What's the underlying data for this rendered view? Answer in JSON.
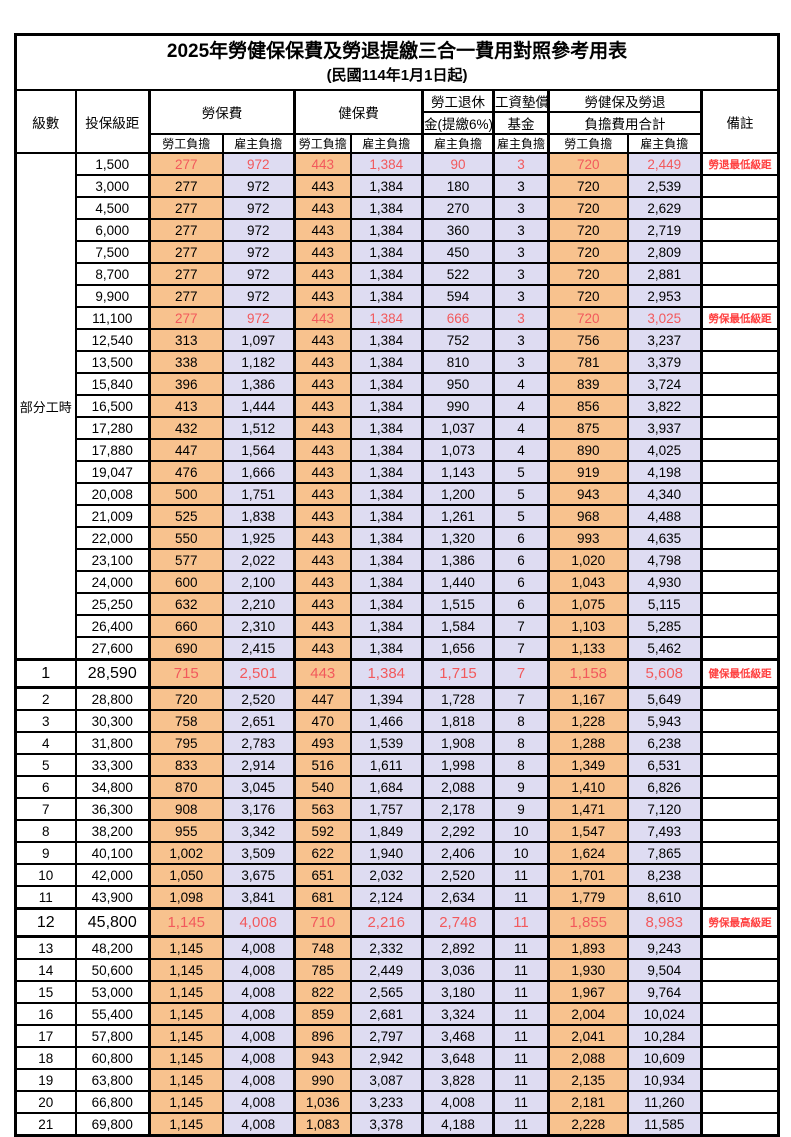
{
  "title": "2025年勞健保保費及勞退提繳三合一費用對照參考用表",
  "subtitle": "(民國114年1月1日起)",
  "colors": {
    "labor_cell_bg": "#F8C28E",
    "employer_cell_bg": "#DEDCF2",
    "red_value": "#F2595C",
    "red_remark": "#FF4040",
    "border": "#000000"
  },
  "table": {
    "header": {
      "level": "級數",
      "salary": "投保級距",
      "labor_ins": "勞保費",
      "health_ins": "健保費",
      "pension_l1": "勞工退休",
      "pension_l2": "金(提繳6%)",
      "wage_fund_l1": "工資墊償",
      "wage_fund_l2": "基金",
      "total_l1": "勞健保及勞退",
      "total_l2": "負擔費用合計",
      "remark": "備註",
      "labor_share": "勞工負擔",
      "employer_share": "雇主負擔"
    },
    "part_time_label": "部分工時",
    "columns_bg": [
      "lab",
      "emp",
      "lab",
      "emp",
      "emp",
      "emp",
      "lab",
      "emp"
    ],
    "rows": [
      {
        "salary": "1,500",
        "values": [
          "277",
          "972",
          "443",
          "1,384",
          "90",
          "3",
          "720",
          "2,449"
        ],
        "remark": "勞退最低級距",
        "red": true
      },
      {
        "salary": "3,000",
        "values": [
          "277",
          "972",
          "443",
          "1,384",
          "180",
          "3",
          "720",
          "2,539"
        ]
      },
      {
        "salary": "4,500",
        "values": [
          "277",
          "972",
          "443",
          "1,384",
          "270",
          "3",
          "720",
          "2,629"
        ]
      },
      {
        "salary": "6,000",
        "values": [
          "277",
          "972",
          "443",
          "1,384",
          "360",
          "3",
          "720",
          "2,719"
        ]
      },
      {
        "salary": "7,500",
        "values": [
          "277",
          "972",
          "443",
          "1,384",
          "450",
          "3",
          "720",
          "2,809"
        ]
      },
      {
        "salary": "8,700",
        "values": [
          "277",
          "972",
          "443",
          "1,384",
          "522",
          "3",
          "720",
          "2,881"
        ]
      },
      {
        "salary": "9,900",
        "values": [
          "277",
          "972",
          "443",
          "1,384",
          "594",
          "3",
          "720",
          "2,953"
        ]
      },
      {
        "salary": "11,100",
        "values": [
          "277",
          "972",
          "443",
          "1,384",
          "666",
          "3",
          "720",
          "3,025"
        ],
        "remark": "勞保最低級距",
        "red": true
      },
      {
        "salary": "12,540",
        "values": [
          "313",
          "1,097",
          "443",
          "1,384",
          "752",
          "3",
          "756",
          "3,237"
        ]
      },
      {
        "salary": "13,500",
        "values": [
          "338",
          "1,182",
          "443",
          "1,384",
          "810",
          "3",
          "781",
          "3,379"
        ]
      },
      {
        "salary": "15,840",
        "values": [
          "396",
          "1,386",
          "443",
          "1,384",
          "950",
          "4",
          "839",
          "3,724"
        ]
      },
      {
        "salary": "16,500",
        "values": [
          "413",
          "1,444",
          "443",
          "1,384",
          "990",
          "4",
          "856",
          "3,822"
        ]
      },
      {
        "salary": "17,280",
        "values": [
          "432",
          "1,512",
          "443",
          "1,384",
          "1,037",
          "4",
          "875",
          "3,937"
        ]
      },
      {
        "salary": "17,880",
        "values": [
          "447",
          "1,564",
          "443",
          "1,384",
          "1,073",
          "4",
          "890",
          "4,025"
        ]
      },
      {
        "salary": "19,047",
        "values": [
          "476",
          "1,666",
          "443",
          "1,384",
          "1,143",
          "5",
          "919",
          "4,198"
        ]
      },
      {
        "salary": "20,008",
        "values": [
          "500",
          "1,751",
          "443",
          "1,384",
          "1,200",
          "5",
          "943",
          "4,340"
        ]
      },
      {
        "salary": "21,009",
        "values": [
          "525",
          "1,838",
          "443",
          "1,384",
          "1,261",
          "5",
          "968",
          "4,488"
        ]
      },
      {
        "salary": "22,000",
        "values": [
          "550",
          "1,925",
          "443",
          "1,384",
          "1,320",
          "6",
          "993",
          "4,635"
        ]
      },
      {
        "salary": "23,100",
        "values": [
          "577",
          "2,022",
          "443",
          "1,384",
          "1,386",
          "6",
          "1,020",
          "4,798"
        ]
      },
      {
        "salary": "24,000",
        "values": [
          "600",
          "2,100",
          "443",
          "1,384",
          "1,440",
          "6",
          "1,043",
          "4,930"
        ]
      },
      {
        "salary": "25,250",
        "values": [
          "632",
          "2,210",
          "443",
          "1,384",
          "1,515",
          "6",
          "1,075",
          "5,115"
        ]
      },
      {
        "salary": "26,400",
        "values": [
          "660",
          "2,310",
          "443",
          "1,384",
          "1,584",
          "7",
          "1,103",
          "5,285"
        ]
      },
      {
        "salary": "27,600",
        "values": [
          "690",
          "2,415",
          "443",
          "1,384",
          "1,656",
          "7",
          "1,133",
          "5,462"
        ]
      },
      {
        "level": "1",
        "salary": "28,590",
        "values": [
          "715",
          "2,501",
          "443",
          "1,384",
          "1,715",
          "7",
          "1,158",
          "5,608"
        ],
        "remark": "健保最低級距",
        "red": true,
        "special": true
      },
      {
        "level": "2",
        "salary": "28,800",
        "values": [
          "720",
          "2,520",
          "447",
          "1,394",
          "1,728",
          "7",
          "1,167",
          "5,649"
        ]
      },
      {
        "level": "3",
        "salary": "30,300",
        "values": [
          "758",
          "2,651",
          "470",
          "1,466",
          "1,818",
          "8",
          "1,228",
          "5,943"
        ]
      },
      {
        "level": "4",
        "salary": "31,800",
        "values": [
          "795",
          "2,783",
          "493",
          "1,539",
          "1,908",
          "8",
          "1,288",
          "6,238"
        ]
      },
      {
        "level": "5",
        "salary": "33,300",
        "values": [
          "833",
          "2,914",
          "516",
          "1,611",
          "1,998",
          "8",
          "1,349",
          "6,531"
        ]
      },
      {
        "level": "6",
        "salary": "34,800",
        "values": [
          "870",
          "3,045",
          "540",
          "1,684",
          "2,088",
          "9",
          "1,410",
          "6,826"
        ]
      },
      {
        "level": "7",
        "salary": "36,300",
        "values": [
          "908",
          "3,176",
          "563",
          "1,757",
          "2,178",
          "9",
          "1,471",
          "7,120"
        ]
      },
      {
        "level": "8",
        "salary": "38,200",
        "values": [
          "955",
          "3,342",
          "592",
          "1,849",
          "2,292",
          "10",
          "1,547",
          "7,493"
        ]
      },
      {
        "level": "9",
        "salary": "40,100",
        "values": [
          "1,002",
          "3,509",
          "622",
          "1,940",
          "2,406",
          "10",
          "1,624",
          "7,865"
        ]
      },
      {
        "level": "10",
        "salary": "42,000",
        "values": [
          "1,050",
          "3,675",
          "651",
          "2,032",
          "2,520",
          "11",
          "1,701",
          "8,238"
        ]
      },
      {
        "level": "11",
        "salary": "43,900",
        "values": [
          "1,098",
          "3,841",
          "681",
          "2,124",
          "2,634",
          "11",
          "1,779",
          "8,610"
        ]
      },
      {
        "level": "12",
        "salary": "45,800",
        "values": [
          "1,145",
          "4,008",
          "710",
          "2,216",
          "2,748",
          "11",
          "1,855",
          "8,983"
        ],
        "remark": "勞保最高級距",
        "red": true,
        "special": true
      },
      {
        "level": "13",
        "salary": "48,200",
        "values": [
          "1,145",
          "4,008",
          "748",
          "2,332",
          "2,892",
          "11",
          "1,893",
          "9,243"
        ]
      },
      {
        "level": "14",
        "salary": "50,600",
        "values": [
          "1,145",
          "4,008",
          "785",
          "2,449",
          "3,036",
          "11",
          "1,930",
          "9,504"
        ]
      },
      {
        "level": "15",
        "salary": "53,000",
        "values": [
          "1,145",
          "4,008",
          "822",
          "2,565",
          "3,180",
          "11",
          "1,967",
          "9,764"
        ]
      },
      {
        "level": "16",
        "salary": "55,400",
        "values": [
          "1,145",
          "4,008",
          "859",
          "2,681",
          "3,324",
          "11",
          "2,004",
          "10,024"
        ]
      },
      {
        "level": "17",
        "salary": "57,800",
        "values": [
          "1,145",
          "4,008",
          "896",
          "2,797",
          "3,468",
          "11",
          "2,041",
          "10,284"
        ]
      },
      {
        "level": "18",
        "salary": "60,800",
        "values": [
          "1,145",
          "4,008",
          "943",
          "2,942",
          "3,648",
          "11",
          "2,088",
          "10,609"
        ]
      },
      {
        "level": "19",
        "salary": "63,800",
        "values": [
          "1,145",
          "4,008",
          "990",
          "3,087",
          "3,828",
          "11",
          "2,135",
          "10,934"
        ]
      },
      {
        "level": "20",
        "salary": "66,800",
        "values": [
          "1,145",
          "4,008",
          "1,036",
          "3,233",
          "4,008",
          "11",
          "2,181",
          "11,260"
        ]
      },
      {
        "level": "21",
        "salary": "69,800",
        "values": [
          "1,145",
          "4,008",
          "1,083",
          "3,378",
          "4,188",
          "11",
          "2,228",
          "11,585"
        ]
      }
    ]
  }
}
